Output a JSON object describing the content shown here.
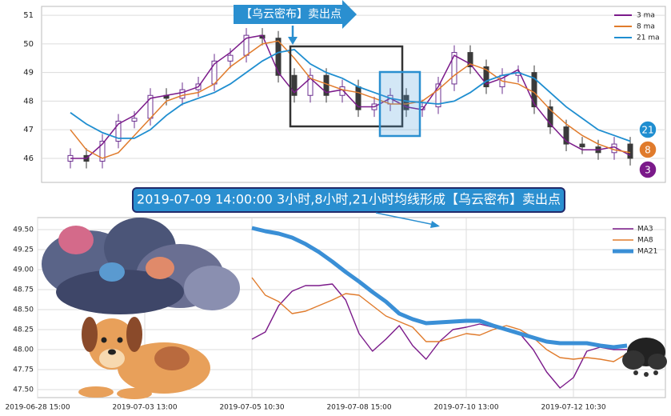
{
  "chart_data": [
    {
      "type": "candlestick",
      "annotation": "【乌云密布】卖出点",
      "ylim": [
        45.16,
        51.31
      ],
      "yticks": [
        46,
        47,
        48,
        49,
        50,
        51
      ],
      "grid": true,
      "candle_colors": {
        "up": "#6b2f8f",
        "down": "#3a3a3a"
      },
      "open": [
        45.9,
        46.1,
        45.9,
        46.6,
        47.3,
        47.4,
        48.2,
        48.1,
        48.4,
        48.6,
        49.4,
        49.6,
        50.3,
        50.2,
        48.9,
        48.2,
        48.9,
        48.2,
        48.5,
        47.7,
        47.9,
        48.2,
        47.7,
        47.8,
        48.6,
        49.7,
        49.2,
        48.5,
        48.9,
        49.0,
        47.8,
        47.1,
        46.5,
        46.4,
        46.2,
        46.5
      ],
      "high": [
        46.35,
        46.35,
        46.85,
        47.55,
        47.65,
        48.45,
        48.45,
        48.65,
        48.85,
        49.65,
        49.85,
        50.55,
        50.55,
        50.45,
        49.15,
        49.15,
        49.15,
        48.75,
        48.75,
        48.15,
        48.45,
        48.45,
        48.05,
        48.85,
        49.95,
        49.95,
        49.45,
        49.15,
        49.25,
        49.25,
        48.05,
        47.35,
        46.75,
        46.65,
        46.75,
        46.75
      ],
      "low": [
        45.65,
        45.65,
        45.65,
        46.35,
        47.05,
        47.15,
        47.85,
        47.85,
        48.15,
        48.35,
        49.15,
        49.35,
        49.95,
        48.65,
        47.95,
        47.95,
        47.95,
        47.95,
        47.45,
        47.45,
        47.65,
        47.45,
        47.45,
        47.55,
        48.35,
        48.95,
        48.25,
        48.25,
        48.65,
        47.55,
        46.85,
        46.25,
        46.15,
        45.95,
        45.95,
        45.75
      ],
      "close": [
        46.1,
        45.9,
        46.6,
        47.3,
        47.4,
        48.2,
        48.1,
        48.4,
        48.6,
        49.4,
        49.6,
        50.3,
        50.2,
        48.9,
        48.2,
        48.9,
        48.2,
        48.5,
        47.7,
        47.9,
        48.2,
        47.7,
        47.8,
        48.6,
        49.7,
        49.2,
        48.5,
        48.9,
        49.0,
        47.8,
        47.1,
        46.5,
        46.4,
        46.2,
        46.5,
        46.0
      ],
      "series": [
        {
          "name": "3 ma",
          "color": "#7b1a8a",
          "values": [
            46.0,
            46.0,
            46.5,
            47.2,
            47.5,
            48.1,
            48.2,
            48.3,
            48.5,
            49.3,
            49.7,
            50.2,
            50.3,
            49.0,
            48.3,
            48.8,
            48.3,
            48.4,
            47.8,
            47.8,
            48.1,
            47.8,
            47.7,
            48.5,
            49.6,
            49.3,
            48.6,
            48.8,
            49.1,
            47.9,
            47.2,
            46.6,
            46.3,
            46.3,
            46.4,
            46.1
          ]
        },
        {
          "name": "8 ma",
          "color": "#e07b2c",
          "values": [
            47.0,
            46.3,
            46.0,
            46.2,
            46.8,
            47.4,
            48.0,
            48.2,
            48.3,
            48.6,
            49.2,
            49.6,
            50.0,
            50.1,
            49.5,
            48.8,
            48.6,
            48.4,
            48.3,
            48.1,
            47.9,
            47.9,
            48.0,
            48.4,
            48.9,
            49.3,
            49.1,
            48.7,
            48.6,
            48.3,
            47.7,
            47.2,
            46.8,
            46.5,
            46.3,
            46.2
          ]
        },
        {
          "name": "21 ma",
          "color": "#1f8ed0",
          "values": [
            47.6,
            47.2,
            46.9,
            46.7,
            46.7,
            47.0,
            47.5,
            47.9,
            48.1,
            48.3,
            48.6,
            49.0,
            49.4,
            49.7,
            49.8,
            49.3,
            49.0,
            48.8,
            48.5,
            48.3,
            48.1,
            48.0,
            47.95,
            47.9,
            48.0,
            48.3,
            48.7,
            48.9,
            49.0,
            48.8,
            48.3,
            47.8,
            47.4,
            47.0,
            46.8,
            46.6
          ]
        }
      ],
      "badges": [
        {
          "label": "21",
          "color": "#1f8ed0"
        },
        {
          "label": "8",
          "color": "#e07b2c"
        },
        {
          "label": "3",
          "color": "#7b1a8a"
        }
      ]
    },
    {
      "type": "line",
      "annotation": "2019-07-09 14:00:00 3小时,8小时,21小时均线形成【乌云密布】卖出点",
      "ylim": [
        47.4,
        49.65
      ],
      "yticks": [
        {
          "value": 47.5,
          "label": "47.50"
        },
        {
          "value": 47.75,
          "label": "47.75"
        },
        {
          "value": 48,
          "label": "48.00"
        },
        {
          "value": 48.25,
          "label": "48.25"
        },
        {
          "value": 48.5,
          "label": "48.50"
        },
        {
          "value": 48.75,
          "label": "48.75"
        },
        {
          "value": 49,
          "label": "49.00"
        },
        {
          "value": 49.25,
          "label": "49.25"
        },
        {
          "value": 49.5,
          "label": "49.50"
        }
      ],
      "grid": true,
      "categories": [
        "2019-06-28 15:00",
        null,
        null,
        null,
        null,
        null,
        null,
        null,
        "2019-07-03 13:00",
        null,
        null,
        null,
        null,
        null,
        null,
        null,
        "2019-07-05 10:30",
        null,
        null,
        null,
        null,
        null,
        null,
        null,
        "2019-07-08 15:00",
        null,
        null,
        null,
        null,
        null,
        null,
        null,
        "2019-07-10 13:00",
        null,
        null,
        null,
        null,
        null,
        null,
        null,
        "2019-07-12 10:30",
        null,
        null,
        null,
        null
      ],
      "series": [
        {
          "name": "MA3",
          "color": "#7b1a8a",
          "values": [
            null,
            null,
            null,
            null,
            null,
            null,
            null,
            null,
            null,
            null,
            null,
            null,
            null,
            null,
            null,
            null,
            48.13,
            48.22,
            48.55,
            48.73,
            48.8,
            48.8,
            48.82,
            48.62,
            48.2,
            47.98,
            48.13,
            48.3,
            48.05,
            47.88,
            48.1,
            48.25,
            48.28,
            48.32,
            48.28,
            48.25,
            48.2,
            48.0,
            47.72,
            47.52,
            47.65,
            47.98,
            48.03,
            48.0,
            48.0
          ]
        },
        {
          "name": "MA8",
          "color": "#e07b2c",
          "values": [
            null,
            null,
            null,
            null,
            null,
            null,
            null,
            null,
            null,
            null,
            null,
            null,
            null,
            null,
            null,
            null,
            48.9,
            48.68,
            48.6,
            48.45,
            48.48,
            48.55,
            48.62,
            48.7,
            48.68,
            48.55,
            48.42,
            48.35,
            48.28,
            48.1,
            48.1,
            48.15,
            48.2,
            48.18,
            48.25,
            48.3,
            48.25,
            48.15,
            48.0,
            47.9,
            47.88,
            47.9,
            47.88,
            47.85,
            47.95
          ]
        },
        {
          "name": "MA21",
          "color": "#3a8fd6",
          "values": [
            null,
            null,
            null,
            null,
            null,
            null,
            null,
            null,
            null,
            null,
            null,
            null,
            null,
            null,
            null,
            null,
            49.52,
            49.48,
            49.45,
            49.4,
            49.32,
            49.22,
            49.1,
            48.97,
            48.85,
            48.72,
            48.6,
            48.45,
            48.38,
            48.33,
            48.34,
            48.35,
            48.36,
            48.36,
            48.3,
            48.25,
            48.2,
            48.15,
            48.1,
            48.08,
            48.08,
            48.08,
            48.05,
            48.03,
            48.05
          ]
        }
      ]
    }
  ]
}
